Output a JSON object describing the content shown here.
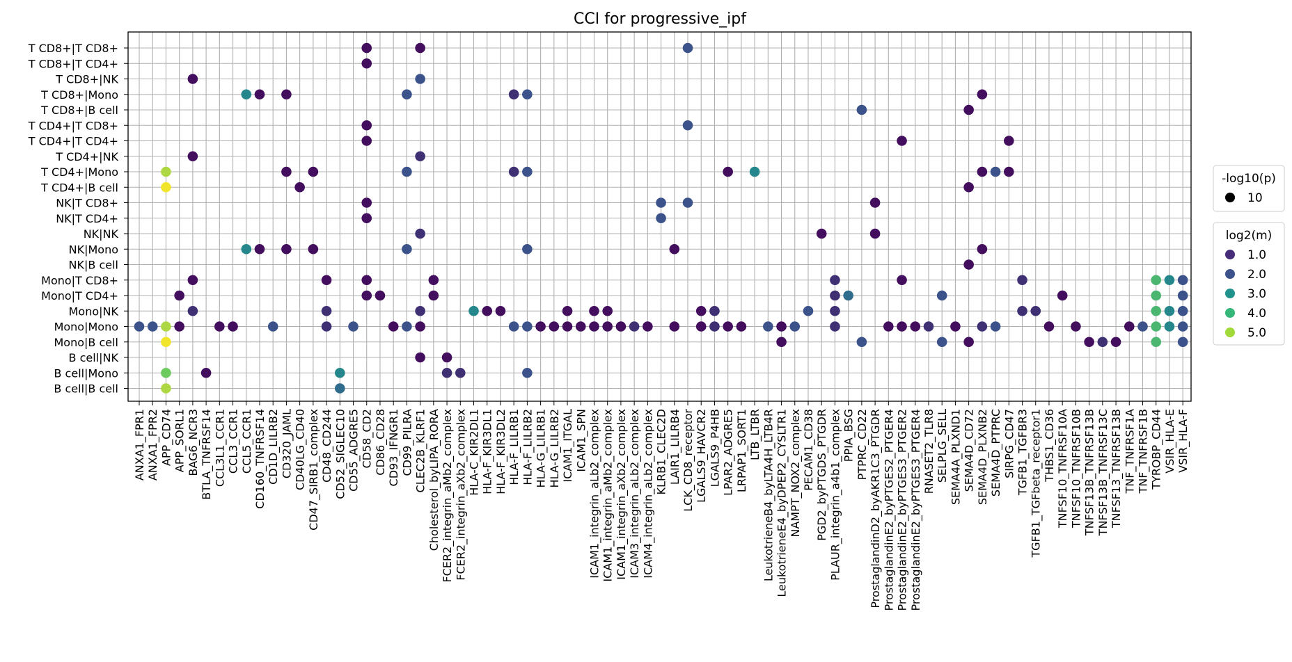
{
  "chart_data": {
    "type": "scatter",
    "title": "CCI for progressive_ipf",
    "xlabel": "",
    "ylabel": "",
    "grid": true,
    "x_categories": [
      "ANXA1_FPR1",
      "ANXA1_FPR2",
      "APP_CD74",
      "APP_SORL1",
      "BAG6_NCR3",
      "BTLA_TNFRSF14",
      "CCL3L1_CCR1",
      "CCL3_CCR1",
      "CCL5_CCR1",
      "CD160_TNFRSF14",
      "CD1D_LILRB2",
      "CD320_JAML",
      "CD40LG_CD40",
      "CD47_SIRB1_complex",
      "CD48_CD244",
      "CD52_SIGLEC10",
      "CD55_ADGRE5",
      "CD58_CD2",
      "CD86_CD28",
      "CD93_IFNGR1",
      "CD99_PILRA",
      "CLEC2B_KLRF1",
      "Cholesterol_byLIPA_RORA",
      "FCER2_integrin_aMb2_complex",
      "FCER2_integrin_aXb2_complex",
      "HLA-C_KIR2DL1",
      "HLA-F_KIR3DL1",
      "HLA-F_KIR3DL2",
      "HLA-F_LILRB1",
      "HLA-F_LILRB2",
      "HLA-G_LILRB1",
      "HLA-G_LILRB2",
      "ICAM1_ITGAL",
      "ICAM1_SPN",
      "ICAM1_integrin_aLb2_complex",
      "ICAM1_integrin_aMb2_complex",
      "ICAM1_integrin_aXb2_complex",
      "ICAM3_integrin_aLb2_complex",
      "ICAM4_integrin_aLb2_complex",
      "KLRB1_CLEC2D",
      "LAIR1_LILRB4",
      "LCK_CD8_receptor",
      "LGALS9_HAVCR2",
      "LGALS9_P4HB",
      "LPAR2_ADGRE5",
      "LRPAP1_SORT1",
      "LTB_LTBR",
      "LeukotrieneB4_byLTA4H_LTB4R",
      "LeukotrieneE4_byDPEP2_CYSLTR1",
      "NAMPT_NOX2_complex",
      "PECAM1_CD38",
      "PGD2_byPTGDS_PTGDR",
      "PLAUR_integrin_a4b1_complex",
      "PPIA_BSG",
      "PTPRC_CD22",
      "ProstaglandinD2_byAKR1C3_PTGDR",
      "ProstaglandinE2_byPTGES2_PTGER4",
      "ProstaglandinE2_byPTGES3_PTGER2",
      "ProstaglandinE2_byPTGES3_PTGER4",
      "RNASET2_TLR8",
      "SELPLG_SELL",
      "SEMA4A_PLXND1",
      "SEMA4D_CD72",
      "SEMA4D_PLXNB2",
      "SEMA4D_PTPRC",
      "SIRPG_CD47",
      "TGFB1_TGFBR3",
      "TGFB1_TGFbeta_receptor1",
      "THBS1_CD36",
      "TNFSF10_TNFRSF10A",
      "TNFSF10_TNFRSF10B",
      "TNFSF13B_TNFRSF13B",
      "TNFSF13B_TNFRSF13C",
      "TNFSF13_TNFRSF13B",
      "TNF_TNFRSF1A",
      "TNF_TNFRSF1B",
      "TYROBP_CD44",
      "VSIR_HLA-E",
      "VSIR_HLA-F"
    ],
    "y_categories": [
      "T CD8+|T CD8+",
      "T CD8+|T CD4+",
      "T CD8+|NK",
      "T CD8+|Mono",
      "T CD8+|B cell",
      "T CD4+|T CD8+",
      "T CD4+|T CD4+",
      "T CD4+|NK",
      "T CD4+|Mono",
      "T CD4+|B cell",
      "NK|T CD8+",
      "NK|T CD4+",
      "NK|NK",
      "NK|Mono",
      "NK|B cell",
      "Mono|T CD8+",
      "Mono|T CD4+",
      "Mono|NK",
      "Mono|Mono",
      "Mono|B cell",
      "B cell|NK",
      "B cell|Mono",
      "B cell|B cell"
    ],
    "size_legend": {
      "title": "-log10(p)",
      "entries": [
        "10"
      ]
    },
    "color_legend": {
      "title": "log2(m)",
      "entries": [
        {
          "label": "1.0",
          "color": "#472c7a"
        },
        {
          "label": "2.0",
          "color": "#3b528b"
        },
        {
          "label": "3.0",
          "color": "#21918c"
        },
        {
          "label": "4.0",
          "color": "#35b779"
        },
        {
          "label": "5.0",
          "color": "#a0da39"
        }
      ]
    },
    "colormap": "viridis",
    "point_size_value": 10,
    "points": [
      [
        "CD58_CD2",
        "T CD8+|T CD8+",
        1
      ],
      [
        "CLEC2B_KLRF1",
        "T CD8+|T CD8+",
        1
      ],
      [
        "LCK_CD8_receptor",
        "T CD8+|T CD8+",
        2
      ],
      [
        "CD58_CD2",
        "T CD8+|T CD4+",
        1
      ],
      [
        "BAG6_NCR3",
        "T CD8+|NK",
        1
      ],
      [
        "CLEC2B_KLRF1",
        "T CD8+|NK",
        2
      ],
      [
        "CCL5_CCR1",
        "T CD8+|Mono",
        3
      ],
      [
        "CD160_TNFRSF14",
        "T CD8+|Mono",
        1
      ],
      [
        "CD320_JAML",
        "T CD8+|Mono",
        1
      ],
      [
        "CD99_PILRA",
        "T CD8+|Mono",
        2
      ],
      [
        "HLA-F_LILRB1",
        "T CD8+|Mono",
        1.5
      ],
      [
        "HLA-F_LILRB2",
        "T CD8+|Mono",
        2
      ],
      [
        "SEMA4D_PLXNB2",
        "T CD8+|Mono",
        1
      ],
      [
        "PTPRC_CD22",
        "T CD8+|B cell",
        2
      ],
      [
        "SEMA4D_CD72",
        "T CD8+|B cell",
        1
      ],
      [
        "CD58_CD2",
        "T CD4+|T CD8+",
        1
      ],
      [
        "LCK_CD8_receptor",
        "T CD4+|T CD8+",
        2
      ],
      [
        "CD58_CD2",
        "T CD4+|T CD4+",
        1
      ],
      [
        "ProstaglandinE2_byPTGES3_PTGER2",
        "T CD4+|T CD4+",
        1
      ],
      [
        "SIRPG_CD47",
        "T CD4+|T CD4+",
        1
      ],
      [
        "BAG6_NCR3",
        "T CD4+|NK",
        1
      ],
      [
        "CLEC2B_KLRF1",
        "T CD4+|NK",
        1.5
      ],
      [
        "APP_CD74",
        "T CD4+|Mono",
        5
      ],
      [
        "CD320_JAML",
        "T CD4+|Mono",
        1
      ],
      [
        "CD47_SIRB1_complex",
        "T CD4+|Mono",
        1
      ],
      [
        "CD99_PILRA",
        "T CD4+|Mono",
        2
      ],
      [
        "HLA-F_LILRB1",
        "T CD4+|Mono",
        1.5
      ],
      [
        "HLA-F_LILRB2",
        "T CD4+|Mono",
        2
      ],
      [
        "LPAR2_ADGRE5",
        "T CD4+|Mono",
        1
      ],
      [
        "LTB_LTBR",
        "T CD4+|Mono",
        3
      ],
      [
        "SEMA4D_PLXNB2",
        "T CD4+|Mono",
        1
      ],
      [
        "SEMA4D_PTPRC",
        "T CD4+|Mono",
        2
      ],
      [
        "SIRPG_CD47",
        "T CD4+|Mono",
        1
      ],
      [
        "APP_CD74",
        "T CD4+|B cell",
        5.5
      ],
      [
        "CD40LG_CD40",
        "T CD4+|B cell",
        1
      ],
      [
        "SEMA4D_CD72",
        "T CD4+|B cell",
        1
      ],
      [
        "CD58_CD2",
        "NK|T CD8+",
        1
      ],
      [
        "KLRB1_CLEC2D",
        "NK|T CD8+",
        2
      ],
      [
        "LCK_CD8_receptor",
        "NK|T CD8+",
        2
      ],
      [
        "ProstaglandinD2_byAKR1C3_PTGDR",
        "NK|T CD8+",
        1
      ],
      [
        "CD58_CD2",
        "NK|T CD4+",
        1
      ],
      [
        "KLRB1_CLEC2D",
        "NK|T CD4+",
        2
      ],
      [
        "CLEC2B_KLRF1",
        "NK|NK",
        1.5
      ],
      [
        "PGD2_byPTGDS_PTGDR",
        "NK|NK",
        1
      ],
      [
        "ProstaglandinD2_byAKR1C3_PTGDR",
        "NK|NK",
        1
      ],
      [
        "CCL5_CCR1",
        "NK|Mono",
        3
      ],
      [
        "CD160_TNFRSF14",
        "NK|Mono",
        1
      ],
      [
        "CD320_JAML",
        "NK|Mono",
        1
      ],
      [
        "CD47_SIRB1_complex",
        "NK|Mono",
        1
      ],
      [
        "CD99_PILRA",
        "NK|Mono",
        2
      ],
      [
        "HLA-F_LILRB2",
        "NK|Mono",
        2
      ],
      [
        "LAIR1_LILRB4",
        "NK|Mono",
        1
      ],
      [
        "SEMA4D_PLXNB2",
        "NK|Mono",
        1
      ],
      [
        "SEMA4D_CD72",
        "NK|B cell",
        1
      ],
      [
        "BAG6_NCR3",
        "Mono|T CD8+",
        1
      ],
      [
        "CD48_CD244",
        "Mono|T CD8+",
        1
      ],
      [
        "CD58_CD2",
        "Mono|T CD8+",
        1
      ],
      [
        "Cholesterol_byLIPA_RORA",
        "Mono|T CD8+",
        1
      ],
      [
        "PLAUR_integrin_a4b1_complex",
        "Mono|T CD8+",
        1.5
      ],
      [
        "ProstaglandinE2_byPTGES3_PTGER2",
        "Mono|T CD8+",
        1
      ],
      [
        "TGFB1_TGFBR3",
        "Mono|T CD8+",
        1.5
      ],
      [
        "TYROBP_CD44",
        "Mono|T CD8+",
        4
      ],
      [
        "VSIR_HLA-E",
        "Mono|T CD8+",
        3
      ],
      [
        "VSIR_HLA-F",
        "Mono|T CD8+",
        2
      ],
      [
        "APP_SORL1",
        "Mono|T CD4+",
        1
      ],
      [
        "CD58_CD2",
        "Mono|T CD4+",
        1
      ],
      [
        "CD86_CD28",
        "Mono|T CD4+",
        1
      ],
      [
        "Cholesterol_byLIPA_RORA",
        "Mono|T CD4+",
        1
      ],
      [
        "PLAUR_integrin_a4b1_complex",
        "Mono|T CD4+",
        1.5
      ],
      [
        "PPIA_BSG",
        "Mono|T CD4+",
        2.5
      ],
      [
        "SELPLG_SELL",
        "Mono|T CD4+",
        2
      ],
      [
        "TNFSF10_TNFRSF10A",
        "Mono|T CD4+",
        1
      ],
      [
        "TYROBP_CD44",
        "Mono|T CD4+",
        4
      ],
      [
        "VSIR_HLA-F",
        "Mono|T CD4+",
        2
      ],
      [
        "BAG6_NCR3",
        "Mono|NK",
        1.5
      ],
      [
        "CD48_CD244",
        "Mono|NK",
        1.5
      ],
      [
        "CLEC2B_KLRF1",
        "Mono|NK",
        1.5
      ],
      [
        "HLA-C_KIR2DL1",
        "Mono|NK",
        3
      ],
      [
        "HLA-F_KIR3DL1",
        "Mono|NK",
        1
      ],
      [
        "HLA-F_KIR3DL2",
        "Mono|NK",
        1
      ],
      [
        "ICAM1_ITGAL",
        "Mono|NK",
        1
      ],
      [
        "ICAM1_integrin_aLb2_complex",
        "Mono|NK",
        1
      ],
      [
        "ICAM1_integrin_aMb2_complex",
        "Mono|NK",
        1
      ],
      [
        "LGALS9_HAVCR2",
        "Mono|NK",
        1
      ],
      [
        "LGALS9_P4HB",
        "Mono|NK",
        1.5
      ],
      [
        "PECAM1_CD38",
        "Mono|NK",
        2
      ],
      [
        "PLAUR_integrin_a4b1_complex",
        "Mono|NK",
        1.5
      ],
      [
        "TGFB1_TGFBR3",
        "Mono|NK",
        1.5
      ],
      [
        "TGFB1_TGFbeta_receptor1",
        "Mono|NK",
        1.5
      ],
      [
        "TYROBP_CD44",
        "Mono|NK",
        4
      ],
      [
        "VSIR_HLA-E",
        "Mono|NK",
        3
      ],
      [
        "VSIR_HLA-F",
        "Mono|NK",
        2
      ],
      [
        "ANXA1_FPR1",
        "Mono|Mono",
        2
      ],
      [
        "ANXA1_FPR2",
        "Mono|Mono",
        2
      ],
      [
        "APP_CD74",
        "Mono|Mono",
        5
      ],
      [
        "APP_SORL1",
        "Mono|Mono",
        1
      ],
      [
        "CCL3L1_CCR1",
        "Mono|Mono",
        1
      ],
      [
        "CCL3_CCR1",
        "Mono|Mono",
        1
      ],
      [
        "CD1D_LILRB2",
        "Mono|Mono",
        2
      ],
      [
        "CD48_CD244",
        "Mono|Mono",
        1.5
      ],
      [
        "CD55_ADGRE5",
        "Mono|Mono",
        2
      ],
      [
        "CD93_IFNGR1",
        "Mono|Mono",
        1
      ],
      [
        "CD99_PILRA",
        "Mono|Mono",
        2
      ],
      [
        "CLEC2B_KLRF1",
        "Mono|Mono",
        1
      ],
      [
        "HLA-F_LILRB1",
        "Mono|Mono",
        2
      ],
      [
        "HLA-F_LILRB2",
        "Mono|Mono",
        2
      ],
      [
        "HLA-G_LILRB1",
        "Mono|Mono",
        1
      ],
      [
        "HLA-G_LILRB2",
        "Mono|Mono",
        1
      ],
      [
        "ICAM1_ITGAL",
        "Mono|Mono",
        1
      ],
      [
        "ICAM1_SPN",
        "Mono|Mono",
        1
      ],
      [
        "ICAM1_integrin_aLb2_complex",
        "Mono|Mono",
        1
      ],
      [
        "ICAM1_integrin_aMb2_complex",
        "Mono|Mono",
        1
      ],
      [
        "ICAM1_integrin_aXb2_complex",
        "Mono|Mono",
        1
      ],
      [
        "ICAM3_integrin_aLb2_complex",
        "Mono|Mono",
        1.5
      ],
      [
        "ICAM4_integrin_aLb2_complex",
        "Mono|Mono",
        1
      ],
      [
        "LAIR1_LILRB4",
        "Mono|Mono",
        1
      ],
      [
        "LGALS9_HAVCR2",
        "Mono|Mono",
        1
      ],
      [
        "LGALS9_P4HB",
        "Mono|Mono",
        1.5
      ],
      [
        "LPAR2_ADGRE5",
        "Mono|Mono",
        1
      ],
      [
        "LRPAP1_SORT1",
        "Mono|Mono",
        1
      ],
      [
        "LeukotrieneB4_byLTA4H_LTB4R",
        "Mono|Mono",
        2
      ],
      [
        "LeukotrieneE4_byDPEP2_CYSLTR1",
        "Mono|Mono",
        1
      ],
      [
        "NAMPT_NOX2_complex",
        "Mono|Mono",
        2
      ],
      [
        "PLAUR_integrin_a4b1_complex",
        "Mono|Mono",
        1.5
      ],
      [
        "ProstaglandinE2_byPTGES2_PTGER4",
        "Mono|Mono",
        1
      ],
      [
        "ProstaglandinE2_byPTGES3_PTGER2",
        "Mono|Mono",
        1
      ],
      [
        "ProstaglandinE2_byPTGES3_PTGER4",
        "Mono|Mono",
        1
      ],
      [
        "RNASET2_TLR8",
        "Mono|Mono",
        1.5
      ],
      [
        "SEMA4A_PLXND1",
        "Mono|Mono",
        1
      ],
      [
        "SEMA4D_PLXNB2",
        "Mono|Mono",
        1.5
      ],
      [
        "SEMA4D_PTPRC",
        "Mono|Mono",
        2
      ],
      [
        "THBS1_CD36",
        "Mono|Mono",
        1
      ],
      [
        "TNFSF10_TNFRSF10B",
        "Mono|Mono",
        1
      ],
      [
        "TNF_TNFRSF1A",
        "Mono|Mono",
        1
      ],
      [
        "TNF_TNFRSF1B",
        "Mono|Mono",
        2
      ],
      [
        "TYROBP_CD44",
        "Mono|Mono",
        4
      ],
      [
        "VSIR_HLA-E",
        "Mono|Mono",
        3
      ],
      [
        "VSIR_HLA-F",
        "Mono|Mono",
        2
      ],
      [
        "APP_CD74",
        "Mono|B cell",
        5.5
      ],
      [
        "LeukotrieneE4_byDPEP2_CYSLTR1",
        "Mono|B cell",
        1
      ],
      [
        "PTPRC_CD22",
        "Mono|B cell",
        2
      ],
      [
        "SELPLG_SELL",
        "Mono|B cell",
        2
      ],
      [
        "SEMA4D_CD72",
        "Mono|B cell",
        1
      ],
      [
        "TNFSF13B_TNFRSF13B",
        "Mono|B cell",
        1
      ],
      [
        "TNFSF13B_TNFRSF13C",
        "Mono|B cell",
        1.5
      ],
      [
        "TNFSF13_TNFRSF13B",
        "Mono|B cell",
        1
      ],
      [
        "TYROBP_CD44",
        "Mono|B cell",
        4
      ],
      [
        "VSIR_HLA-F",
        "Mono|B cell",
        2
      ],
      [
        "CLEC2B_KLRF1",
        "B cell|NK",
        1
      ],
      [
        "FCER2_integrin_aMb2_complex",
        "B cell|NK",
        1
      ],
      [
        "APP_CD74",
        "B cell|Mono",
        4.5
      ],
      [
        "BTLA_TNFRSF14",
        "B cell|Mono",
        1
      ],
      [
        "CD52_SIGLEC10",
        "B cell|Mono",
        3
      ],
      [
        "FCER2_integrin_aMb2_complex",
        "B cell|Mono",
        1.5
      ],
      [
        "FCER2_integrin_aXb2_complex",
        "B cell|Mono",
        1.5
      ],
      [
        "HLA-F_LILRB2",
        "B cell|Mono",
        2
      ],
      [
        "APP_CD74",
        "B cell|B cell",
        5
      ],
      [
        "CD52_SIGLEC10",
        "B cell|B cell",
        2.5
      ]
    ]
  }
}
